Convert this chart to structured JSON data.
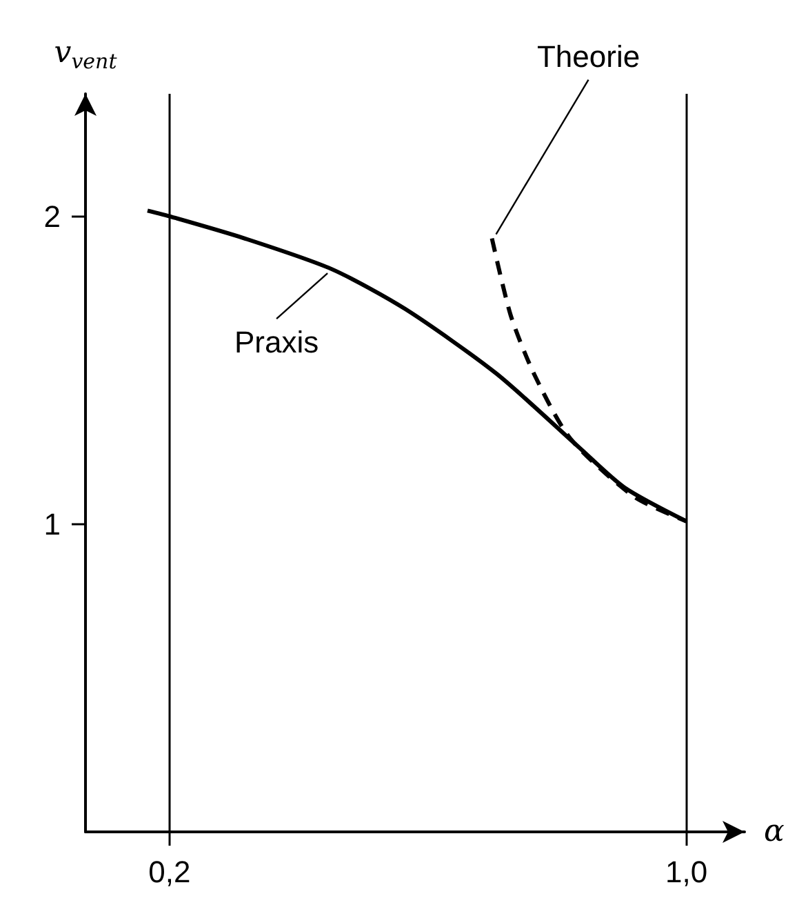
{
  "chart_data": {
    "type": "line",
    "xlabel": "α",
    "ylabel": "v$_{vent}$",
    "xlim": [
      0.07,
      1.09
    ],
    "ylim": [
      0,
      2.4
    ],
    "xticks": [
      {
        "value": 0.2,
        "label": "0,2"
      },
      {
        "value": 1.0,
        "label": "1,0"
      }
    ],
    "yticks": [
      1,
      2
    ],
    "grid": "x",
    "marker": "none",
    "series": [
      {
        "name": "Praxis",
        "color": "#000000",
        "line_style": "solid",
        "x": [
          0.166,
          0.203,
          0.316,
          0.451,
          0.565,
          0.706,
          0.834,
          0.904,
          1.0
        ],
        "values": [
          2.02,
          2.0,
          1.93,
          1.83,
          1.7,
          1.49,
          1.25,
          1.12,
          1.01
        ]
      },
      {
        "name": "Theorie",
        "color": "#000000",
        "line_style": "dashed",
        "x": [
          0.699,
          0.728,
          0.764,
          0.82,
          0.919,
          1.0
        ],
        "values": [
          1.93,
          1.68,
          1.49,
          1.28,
          1.09,
          1.01
        ]
      }
    ]
  }
}
